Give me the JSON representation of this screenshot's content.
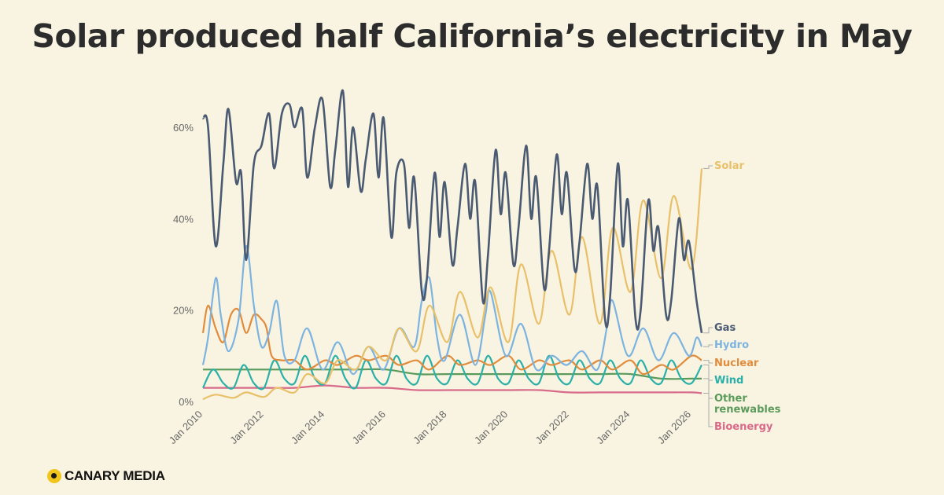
{
  "colors": {
    "background": "#f9f4e1",
    "gas": "#4a5a72",
    "solar": "#e8c06a",
    "hydro": "#7cb3e0",
    "nuclear": "#e08c3c",
    "wind": "#2ab0a8",
    "other": "#5a9a5a",
    "bioenergy": "#d86a8a",
    "grid": "#ddd6bd",
    "brand_yellow": "#f2c51c"
  },
  "brand": {
    "name": "CANARY MEDIA",
    "icon": "canary-logo-icon"
  },
  "chart_data": {
    "type": "line",
    "title": "Solar produced half California’s electricity in May",
    "xlabel": "",
    "ylabel": "",
    "x_range": [
      "2010-01",
      "2026-05"
    ],
    "ylim": [
      0,
      70
    ],
    "y_ticks": [
      0,
      20,
      40,
      60
    ],
    "y_tick_labels": [
      "0%",
      "20%",
      "40%",
      "60%"
    ],
    "x_ticks": [
      "2010-01",
      "2012-01",
      "2014-01",
      "2016-01",
      "2018-01",
      "2020-01",
      "2022-01",
      "2024-01",
      "2026-01"
    ],
    "x_tick_labels": [
      "Jan 2010",
      "Jan 2012",
      "Jan 2014",
      "Jan 2016",
      "Jan 2018",
      "Jan 2020",
      "Jan 2022",
      "Jan 2024",
      "Jan 2026"
    ],
    "grid": false,
    "legend": "end-of-line labels",
    "series": [
      {
        "name": "Gas",
        "color_key": "gas",
        "points": [
          [
            "2010-01",
            62
          ],
          [
            "2010-03",
            60
          ],
          [
            "2010-06",
            34
          ],
          [
            "2010-09",
            52
          ],
          [
            "2010-11",
            64
          ],
          [
            "2011-02",
            48
          ],
          [
            "2011-04",
            50
          ],
          [
            "2011-06",
            31
          ],
          [
            "2011-09",
            52
          ],
          [
            "2011-12",
            56
          ],
          [
            "2012-03",
            63
          ],
          [
            "2012-05",
            51
          ],
          [
            "2012-08",
            63
          ],
          [
            "2012-11",
            65
          ],
          [
            "2013-01",
            60
          ],
          [
            "2013-04",
            64
          ],
          [
            "2013-06",
            49
          ],
          [
            "2013-09",
            60
          ],
          [
            "2013-12",
            66
          ],
          [
            "2014-03",
            47
          ],
          [
            "2014-05",
            55
          ],
          [
            "2014-08",
            68
          ],
          [
            "2014-10",
            47
          ],
          [
            "2014-12",
            60
          ],
          [
            "2015-03",
            46
          ],
          [
            "2015-05",
            53
          ],
          [
            "2015-08",
            63
          ],
          [
            "2015-10",
            49
          ],
          [
            "2015-12",
            62
          ],
          [
            "2016-03",
            36
          ],
          [
            "2016-05",
            50
          ],
          [
            "2016-08",
            52
          ],
          [
            "2016-10",
            38
          ],
          [
            "2016-12",
            49
          ],
          [
            "2017-03",
            24
          ],
          [
            "2017-05",
            27
          ],
          [
            "2017-08",
            50
          ],
          [
            "2017-10",
            36
          ],
          [
            "2017-12",
            48
          ],
          [
            "2018-03",
            30
          ],
          [
            "2018-05",
            38
          ],
          [
            "2018-08",
            52
          ],
          [
            "2018-10",
            40
          ],
          [
            "2018-12",
            48
          ],
          [
            "2019-03",
            22
          ],
          [
            "2019-05",
            32
          ],
          [
            "2019-08",
            55
          ],
          [
            "2019-10",
            41
          ],
          [
            "2019-12",
            50
          ],
          [
            "2020-03",
            30
          ],
          [
            "2020-05",
            38
          ],
          [
            "2020-08",
            56
          ],
          [
            "2020-10",
            40
          ],
          [
            "2020-12",
            49
          ],
          [
            "2021-03",
            25
          ],
          [
            "2021-05",
            33
          ],
          [
            "2021-08",
            54
          ],
          [
            "2021-10",
            41
          ],
          [
            "2021-12",
            50
          ],
          [
            "2022-03",
            29
          ],
          [
            "2022-05",
            35
          ],
          [
            "2022-08",
            52
          ],
          [
            "2022-10",
            40
          ],
          [
            "2022-12",
            47
          ],
          [
            "2023-03",
            18
          ],
          [
            "2023-05",
            23
          ],
          [
            "2023-08",
            52
          ],
          [
            "2023-10",
            34
          ],
          [
            "2023-12",
            44
          ],
          [
            "2024-03",
            18
          ],
          [
            "2024-05",
            20
          ],
          [
            "2024-08",
            44
          ],
          [
            "2024-10",
            33
          ],
          [
            "2024-12",
            38
          ],
          [
            "2025-03",
            19
          ],
          [
            "2025-05",
            22
          ],
          [
            "2025-08",
            40
          ],
          [
            "2025-10",
            31
          ],
          [
            "2025-12",
            35
          ],
          [
            "2026-03",
            22
          ],
          [
            "2026-05",
            15
          ]
        ]
      },
      {
        "name": "Solar",
        "color_key": "solar",
        "points": [
          [
            "2010-01",
            0.5
          ],
          [
            "2010-06",
            1.5
          ],
          [
            "2011-01",
            0.8
          ],
          [
            "2011-06",
            2
          ],
          [
            "2012-01",
            1
          ],
          [
            "2012-06",
            3
          ],
          [
            "2013-01",
            2
          ],
          [
            "2013-06",
            6
          ],
          [
            "2014-01",
            4
          ],
          [
            "2014-06",
            9
          ],
          [
            "2015-01",
            7
          ],
          [
            "2015-06",
            12
          ],
          [
            "2016-01",
            9
          ],
          [
            "2016-06",
            16
          ],
          [
            "2017-01",
            11
          ],
          [
            "2017-06",
            21
          ],
          [
            "2018-01",
            13
          ],
          [
            "2018-06",
            24
          ],
          [
            "2019-01",
            14
          ],
          [
            "2019-06",
            25
          ],
          [
            "2020-01",
            13
          ],
          [
            "2020-06",
            30
          ],
          [
            "2021-01",
            17
          ],
          [
            "2021-06",
            33
          ],
          [
            "2022-01",
            19
          ],
          [
            "2022-06",
            36
          ],
          [
            "2023-01",
            17
          ],
          [
            "2023-06",
            38
          ],
          [
            "2024-01",
            24
          ],
          [
            "2024-06",
            44
          ],
          [
            "2025-01",
            27
          ],
          [
            "2025-06",
            45
          ],
          [
            "2026-01",
            29
          ],
          [
            "2026-05",
            51
          ]
        ]
      },
      {
        "name": "Hydro",
        "color_key": "hydro",
        "points": [
          [
            "2010-01",
            8
          ],
          [
            "2010-03",
            14
          ],
          [
            "2010-06",
            27
          ],
          [
            "2010-08",
            19
          ],
          [
            "2010-11",
            11
          ],
          [
            "2011-03",
            18
          ],
          [
            "2011-06",
            34
          ],
          [
            "2011-09",
            21
          ],
          [
            "2011-12",
            12
          ],
          [
            "2012-03",
            15
          ],
          [
            "2012-06",
            22
          ],
          [
            "2012-09",
            10
          ],
          [
            "2013-01",
            9
          ],
          [
            "2013-06",
            16
          ],
          [
            "2013-12",
            7
          ],
          [
            "2014-06",
            13
          ],
          [
            "2014-12",
            6
          ],
          [
            "2015-06",
            12
          ],
          [
            "2015-12",
            7
          ],
          [
            "2016-06",
            16
          ],
          [
            "2016-12",
            12
          ],
          [
            "2017-03",
            22
          ],
          [
            "2017-06",
            27
          ],
          [
            "2017-09",
            14
          ],
          [
            "2017-12",
            9
          ],
          [
            "2018-06",
            19
          ],
          [
            "2018-12",
            8
          ],
          [
            "2019-04",
            19
          ],
          [
            "2019-06",
            24
          ],
          [
            "2019-12",
            10
          ],
          [
            "2020-06",
            17
          ],
          [
            "2020-12",
            7
          ],
          [
            "2021-06",
            10
          ],
          [
            "2021-12",
            8
          ],
          [
            "2022-06",
            11
          ],
          [
            "2022-12",
            7
          ],
          [
            "2023-04",
            17
          ],
          [
            "2023-06",
            22
          ],
          [
            "2023-12",
            10
          ],
          [
            "2024-06",
            16
          ],
          [
            "2024-12",
            9
          ],
          [
            "2025-06",
            15
          ],
          [
            "2025-12",
            10
          ],
          [
            "2026-03",
            14
          ],
          [
            "2026-05",
            12
          ]
        ]
      },
      {
        "name": "Nuclear",
        "color_key": "nuclear",
        "points": [
          [
            "2010-01",
            15
          ],
          [
            "2010-03",
            21
          ],
          [
            "2010-06",
            16
          ],
          [
            "2010-09",
            13
          ],
          [
            "2010-12",
            19
          ],
          [
            "2011-03",
            20
          ],
          [
            "2011-06",
            15
          ],
          [
            "2011-09",
            19
          ],
          [
            "2011-12",
            18
          ],
          [
            "2012-02",
            16
          ],
          [
            "2012-04",
            10
          ],
          [
            "2012-08",
            9
          ],
          [
            "2013-01",
            9
          ],
          [
            "2013-06",
            7
          ],
          [
            "2014-01",
            9
          ],
          [
            "2014-06",
            8
          ],
          [
            "2015-01",
            10
          ],
          [
            "2015-06",
            9
          ],
          [
            "2016-01",
            10
          ],
          [
            "2016-06",
            8
          ],
          [
            "2017-01",
            9
          ],
          [
            "2017-06",
            7
          ],
          [
            "2018-01",
            10
          ],
          [
            "2018-06",
            8
          ],
          [
            "2019-01",
            9
          ],
          [
            "2019-06",
            8
          ],
          [
            "2020-01",
            10
          ],
          [
            "2020-06",
            7
          ],
          [
            "2021-01",
            9
          ],
          [
            "2021-06",
            8
          ],
          [
            "2022-01",
            9
          ],
          [
            "2022-06",
            7
          ],
          [
            "2023-01",
            9
          ],
          [
            "2023-06",
            7
          ],
          [
            "2024-01",
            9
          ],
          [
            "2024-06",
            6
          ],
          [
            "2025-01",
            8
          ],
          [
            "2025-06",
            7
          ],
          [
            "2026-01",
            10
          ],
          [
            "2026-05",
            9
          ]
        ]
      },
      {
        "name": "Wind",
        "color_key": "wind",
        "points": [
          [
            "2010-01",
            3
          ],
          [
            "2010-05",
            7
          ],
          [
            "2010-09",
            4
          ],
          [
            "2011-01",
            3
          ],
          [
            "2011-05",
            8
          ],
          [
            "2011-09",
            4
          ],
          [
            "2012-01",
            3
          ],
          [
            "2012-05",
            9
          ],
          [
            "2012-09",
            5
          ],
          [
            "2013-01",
            4
          ],
          [
            "2013-05",
            10
          ],
          [
            "2013-09",
            5
          ],
          [
            "2014-01",
            4
          ],
          [
            "2014-05",
            10
          ],
          [
            "2014-09",
            5
          ],
          [
            "2015-01",
            3
          ],
          [
            "2015-05",
            9
          ],
          [
            "2015-09",
            5
          ],
          [
            "2016-01",
            4
          ],
          [
            "2016-05",
            10
          ],
          [
            "2016-09",
            5
          ],
          [
            "2017-01",
            4
          ],
          [
            "2017-05",
            10
          ],
          [
            "2017-09",
            5
          ],
          [
            "2018-01",
            4
          ],
          [
            "2018-05",
            9
          ],
          [
            "2018-09",
            5
          ],
          [
            "2019-01",
            4
          ],
          [
            "2019-05",
            10
          ],
          [
            "2019-09",
            5
          ],
          [
            "2020-01",
            4
          ],
          [
            "2020-05",
            9
          ],
          [
            "2020-09",
            5
          ],
          [
            "2021-01",
            4
          ],
          [
            "2021-05",
            10
          ],
          [
            "2021-09",
            5
          ],
          [
            "2022-01",
            4
          ],
          [
            "2022-05",
            9
          ],
          [
            "2022-09",
            5
          ],
          [
            "2023-01",
            4
          ],
          [
            "2023-05",
            9
          ],
          [
            "2023-09",
            5
          ],
          [
            "2024-01",
            4
          ],
          [
            "2024-05",
            9
          ],
          [
            "2024-09",
            5
          ],
          [
            "2025-01",
            4
          ],
          [
            "2025-05",
            9
          ],
          [
            "2025-09",
            5
          ],
          [
            "2026-01",
            4
          ],
          [
            "2026-05",
            8
          ]
        ]
      },
      {
        "name": "Other\nrenewables",
        "color_key": "other",
        "points": [
          [
            "2010-01",
            7
          ],
          [
            "2011-01",
            7
          ],
          [
            "2012-01",
            7
          ],
          [
            "2013-01",
            7
          ],
          [
            "2014-01",
            7
          ],
          [
            "2015-01",
            7
          ],
          [
            "2016-01",
            7
          ],
          [
            "2017-01",
            6
          ],
          [
            "2018-01",
            6
          ],
          [
            "2019-01",
            6
          ],
          [
            "2020-01",
            6
          ],
          [
            "2021-01",
            6
          ],
          [
            "2022-01",
            6
          ],
          [
            "2023-01",
            6
          ],
          [
            "2024-01",
            6
          ],
          [
            "2025-01",
            5
          ],
          [
            "2026-01",
            5
          ],
          [
            "2026-05",
            5
          ]
        ]
      },
      {
        "name": "Bioenergy",
        "color_key": "bioenergy",
        "points": [
          [
            "2010-01",
            3
          ],
          [
            "2011-01",
            3
          ],
          [
            "2012-01",
            3
          ],
          [
            "2013-01",
            3
          ],
          [
            "2014-01",
            3.5
          ],
          [
            "2015-01",
            3
          ],
          [
            "2016-01",
            3
          ],
          [
            "2017-01",
            2.5
          ],
          [
            "2018-01",
            2.5
          ],
          [
            "2019-01",
            2.5
          ],
          [
            "2020-01",
            2.5
          ],
          [
            "2021-01",
            2.5
          ],
          [
            "2022-01",
            2
          ],
          [
            "2023-01",
            2
          ],
          [
            "2024-01",
            2
          ],
          [
            "2025-01",
            2
          ],
          [
            "2026-01",
            2
          ],
          [
            "2026-05",
            1.8
          ]
        ]
      }
    ]
  }
}
